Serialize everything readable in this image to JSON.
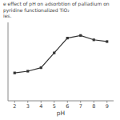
{
  "chart_data": {
    "type": "line",
    "title": "e effect of pH on adsorbtion of palladium on pyridine functionalized TiO₂",
    "subtitle": "ies.",
    "xlabel": "pH",
    "x": [
      2,
      3,
      4,
      5,
      6,
      7,
      8,
      9
    ],
    "values": [
      32,
      34,
      38,
      55,
      72,
      75,
      70,
      68
    ],
    "xlim": [
      1.5,
      9.5
    ],
    "ylim": [
      0,
      90
    ],
    "xticks": [
      2,
      3,
      4,
      5,
      6,
      7,
      8,
      9
    ],
    "tick_labels": "x",
    "color": "#333333",
    "marker": "square"
  }
}
